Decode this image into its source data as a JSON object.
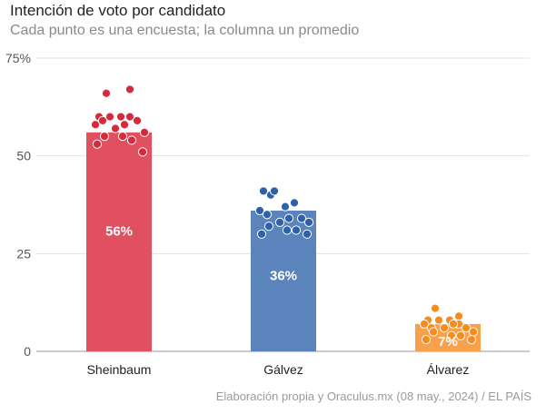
{
  "title": "Intención de voto por candidato",
  "subtitle": "Cada punto es una encuesta; la columna un promedio",
  "source": "Elaboración propia y Oraculus.mx (08 may., 2024) / EL PAÍS",
  "chart_data": {
    "type": "bar",
    "title": "Intención de voto por candidato",
    "xlabel": "",
    "ylabel": "",
    "ylim": [
      0,
      75
    ],
    "yticks": [
      0,
      25,
      50,
      75
    ],
    "ytick_labels": [
      "0",
      "25",
      "50",
      "75%"
    ],
    "grid": true,
    "categories": [
      "Sheinbaum",
      "Gálvez",
      "Álvarez"
    ],
    "values": [
      56,
      36,
      7
    ],
    "value_labels": [
      "56%",
      "36%",
      "7%"
    ],
    "colors": [
      "#e05061",
      "#5b84bd",
      "#f9a04a"
    ],
    "dot_colors": [
      "#d8293c",
      "#2e62a8",
      "#f88b1e"
    ],
    "polls": [
      [
        66,
        67,
        60,
        60,
        60,
        60,
        58,
        58,
        59,
        59,
        57,
        56,
        55,
        55,
        54,
        53,
        51
      ],
      [
        40,
        38,
        41,
        41,
        37,
        38,
        36,
        34,
        35,
        34,
        33,
        33,
        32,
        31,
        31,
        30,
        30
      ],
      [
        11,
        9,
        8,
        8,
        8,
        7,
        7,
        7,
        6,
        6,
        6,
        5,
        5,
        4,
        4,
        3,
        3
      ]
    ]
  }
}
